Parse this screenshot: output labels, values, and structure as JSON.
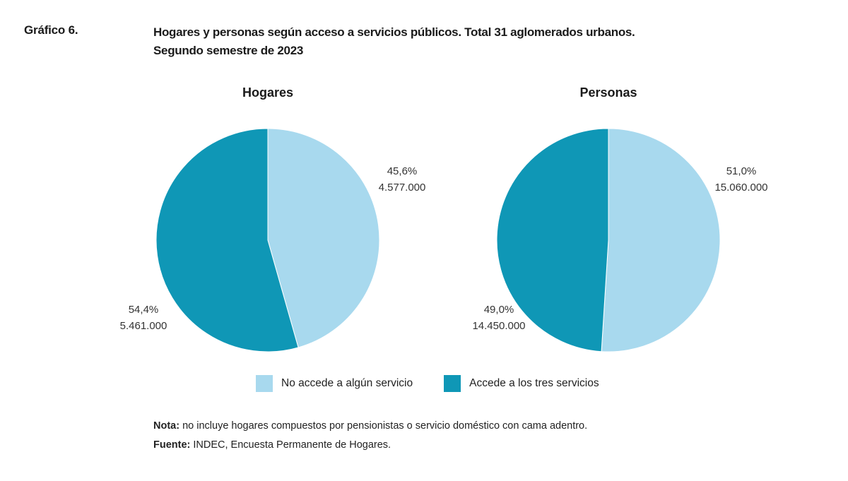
{
  "figure": {
    "number": "Gráfico 6.",
    "title_line1": "Hogares y personas según acceso a servicios públicos. Total 31 aglomerados urbanos.",
    "title_line2": "Segundo semestre de 2023"
  },
  "colors": {
    "no_accede": "#a8d9ee",
    "accede": "#0f97b6",
    "stroke": "#ffffff"
  },
  "chart_data": [
    {
      "type": "pie",
      "title": "Hogares",
      "slices": [
        {
          "category": "No accede a algún servicio",
          "percent": 45.6,
          "percent_label": "45,6%",
          "value": 4577000,
          "value_label": "4.577.000"
        },
        {
          "category": "Accede a los tres servicios",
          "percent": 54.4,
          "percent_label": "54,4%",
          "value": 5461000,
          "value_label": "5.461.000"
        }
      ]
    },
    {
      "type": "pie",
      "title": "Personas",
      "slices": [
        {
          "category": "No accede a algún servicio",
          "percent": 51.0,
          "percent_label": "51,0%",
          "value": 15060000,
          "value_label": "15.060.000"
        },
        {
          "category": "Accede a los tres servicios",
          "percent": 49.0,
          "percent_label": "49,0%",
          "value": 14450000,
          "value_label": "14.450.000"
        }
      ]
    }
  ],
  "legend": [
    {
      "label": "No accede a algún servicio"
    },
    {
      "label": "Accede a los tres servicios"
    }
  ],
  "note": {
    "label": "Nota:",
    "text": " no incluye hogares compuestos por pensionistas o servicio doméstico con cama adentro."
  },
  "source": {
    "label": "Fuente:",
    "text": " INDEC, Encuesta Permanente de Hogares."
  }
}
